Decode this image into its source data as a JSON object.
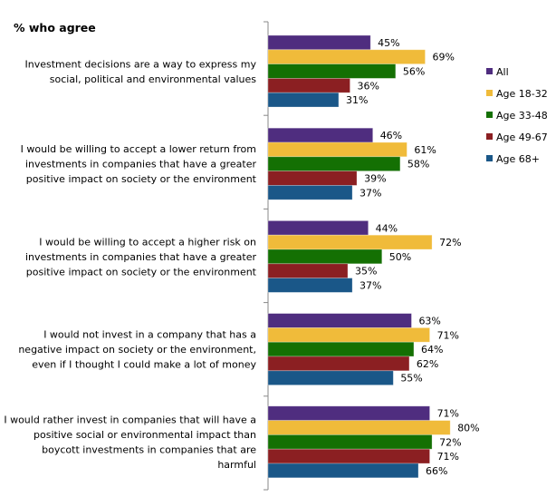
{
  "chart_data": {
    "type": "bar",
    "orientation": "horizontal",
    "title": "% who agree",
    "categories": [
      [
        "Investment decisions are a way to express my",
        "social, political and environmental values"
      ],
      [
        "I would be willing to accept a lower return from",
        "investments in companies that have a greater",
        "positive impact on society or the environment"
      ],
      [
        "I would be willing to accept a higher risk on",
        "investments in companies that have a greater",
        "positive impact on society or the environment"
      ],
      [
        "I would not invest in a company that has a",
        "negative impact on society or the environment,",
        "even if I thought I could make a lot of money"
      ],
      [
        "I would rather invest in companies that will have a",
        "positive social or environmental impact than",
        "boycott investments in companies that are",
        "harmful"
      ]
    ],
    "series": [
      {
        "name": "All",
        "color": "#4f2d7f",
        "values": [
          45,
          46,
          44,
          63,
          71
        ]
      },
      {
        "name": "Age 18-32",
        "color": "#f0bb3a",
        "values": [
          69,
          61,
          72,
          71,
          80
        ]
      },
      {
        "name": "Age 33-48",
        "color": "#147003",
        "values": [
          56,
          58,
          50,
          64,
          72
        ]
      },
      {
        "name": "Age 49-67",
        "color": "#8b1f22",
        "values": [
          36,
          39,
          35,
          62,
          71
        ]
      },
      {
        "name": "Age 68+",
        "color": "#1a5788",
        "values": [
          31,
          37,
          37,
          55,
          66
        ]
      }
    ],
    "value_suffix": "%",
    "xlim": [
      0,
      100
    ],
    "grid": false,
    "legend_position": "right"
  }
}
